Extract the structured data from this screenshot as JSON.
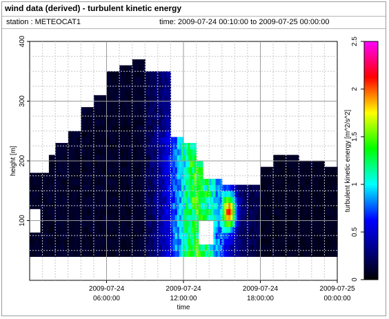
{
  "header": {
    "title": "wind data (derived) - turbulent kinetic energy",
    "station": "station : METEOCAT1",
    "time_range": "time: 2009-07-24 00:10:00 to 2009-07-25 00:00:00"
  },
  "chart_data": {
    "type": "heatmap",
    "xlabel": "time",
    "ylabel": "height [m]",
    "colorbar_label": "turbulent kinetic energy [m^2/s^2]",
    "x_tick_labels": [
      {
        "line1": "2009-07-24",
        "line2": "06:00:00",
        "hour": 6
      },
      {
        "line1": "2009-07-24",
        "line2": "12:00:00",
        "hour": 12
      },
      {
        "line1": "2009-07-24",
        "line2": "18:00:00",
        "hour": 18
      },
      {
        "line1": "2009-07-25",
        "line2": "00:00:00",
        "hour": 24
      }
    ],
    "y_ticks": [
      100,
      200,
      300,
      400
    ],
    "ylim": [
      0,
      400
    ],
    "xlim_hours": [
      0,
      24
    ],
    "colorbar_ticks": [
      0,
      0.5,
      1,
      1.5,
      2,
      2.5
    ],
    "colorbar_range": [
      0,
      2.5
    ],
    "colormap": [
      "#000000",
      "#000080",
      "#0000ff",
      "#00ffff",
      "#00ff00",
      "#ffff00",
      "#ff0000",
      "#ff00ff"
    ],
    "grid": true,
    "description_of_values": {
      "bottom_height_m": [
        40,
        40
      ],
      "top_height_m_by_hour": [
        [
          0,
          175
        ],
        [
          1,
          175
        ],
        [
          1.5,
          210
        ],
        [
          2,
          230
        ],
        [
          3,
          245
        ],
        [
          4,
          290
        ],
        [
          5,
          310
        ],
        [
          6,
          345
        ],
        [
          7,
          360
        ],
        [
          8,
          365
        ],
        [
          9,
          350
        ],
        [
          10,
          350
        ],
        [
          11,
          240
        ],
        [
          12,
          230
        ],
        [
          13,
          200
        ],
        [
          13.5,
          165
        ],
        [
          15,
          160
        ],
        [
          16,
          155
        ],
        [
          17,
          155
        ],
        [
          18,
          185
        ],
        [
          19,
          205
        ],
        [
          20,
          210
        ],
        [
          21,
          195
        ],
        [
          22,
          200
        ],
        [
          23,
          185
        ],
        [
          24,
          185
        ]
      ],
      "peak_value": 2.3,
      "peak_hour": 15.5,
      "peak_height_m": 110
    }
  }
}
